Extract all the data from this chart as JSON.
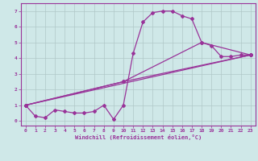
{
  "xlabel": "Windchill (Refroidissement éolien,°C)",
  "ylabel": "",
  "background_color": "#cfe8e8",
  "grid_color": "#b0c8c8",
  "line_color": "#993399",
  "xlim": [
    -0.5,
    23.5
  ],
  "ylim": [
    -0.3,
    7.5
  ],
  "xticks": [
    0,
    1,
    2,
    3,
    4,
    5,
    6,
    7,
    8,
    9,
    10,
    11,
    12,
    13,
    14,
    15,
    16,
    17,
    18,
    19,
    20,
    21,
    22,
    23
  ],
  "yticks": [
    0,
    1,
    2,
    3,
    4,
    5,
    6,
    7
  ],
  "line1_x": [
    0,
    1,
    2,
    3,
    4,
    5,
    6,
    7,
    8,
    9,
    10,
    11,
    12,
    13,
    14,
    15,
    16,
    17,
    18,
    19,
    20,
    21,
    22,
    23
  ],
  "line1_y": [
    1.0,
    0.3,
    0.2,
    0.7,
    0.6,
    0.5,
    0.5,
    0.6,
    1.0,
    0.1,
    1.0,
    4.3,
    6.3,
    6.9,
    7.0,
    7.0,
    6.7,
    6.5,
    5.0,
    4.8,
    4.1,
    4.1,
    4.2,
    4.2
  ],
  "line2_x": [
    0,
    10,
    23
  ],
  "line2_y": [
    1.0,
    2.5,
    4.2
  ],
  "line3_x": [
    0,
    23
  ],
  "line3_y": [
    1.0,
    4.2
  ],
  "line4_x": [
    0,
    10,
    18,
    23
  ],
  "line4_y": [
    1.0,
    2.5,
    5.0,
    4.2
  ],
  "marker": "D",
  "markersize": 2.0,
  "linewidth": 0.9
}
